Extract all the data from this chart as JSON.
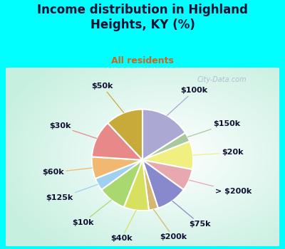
{
  "title": "Income distribution in Highland\nHeights, KY (%)",
  "subtitle": "All residents",
  "bg_cyan": "#00FFFF",
  "labels": [
    "$100k",
    "$150k",
    "$20k",
    "> $200k",
    "$75k",
    "$200k",
    "$40k",
    "$10k",
    "$125k",
    "$60k",
    "$30k",
    "$50k"
  ],
  "values": [
    16,
    3,
    9,
    7,
    10,
    3,
    8,
    9,
    4,
    7,
    12,
    12
  ],
  "colors": [
    "#aba8d4",
    "#a8c8a0",
    "#f0ef80",
    "#e8a8b0",
    "#8888cc",
    "#d4b870",
    "#d8e060",
    "#aad870",
    "#a0d0f0",
    "#f0b870",
    "#e88888",
    "#c8aa3a"
  ],
  "watermark": "City-Data.com",
  "label_fontsize": 8,
  "title_fontsize": 12,
  "subtitle_fontsize": 9,
  "title_color": "#111133",
  "subtitle_color": "#cc6622",
  "label_color": "#111133"
}
